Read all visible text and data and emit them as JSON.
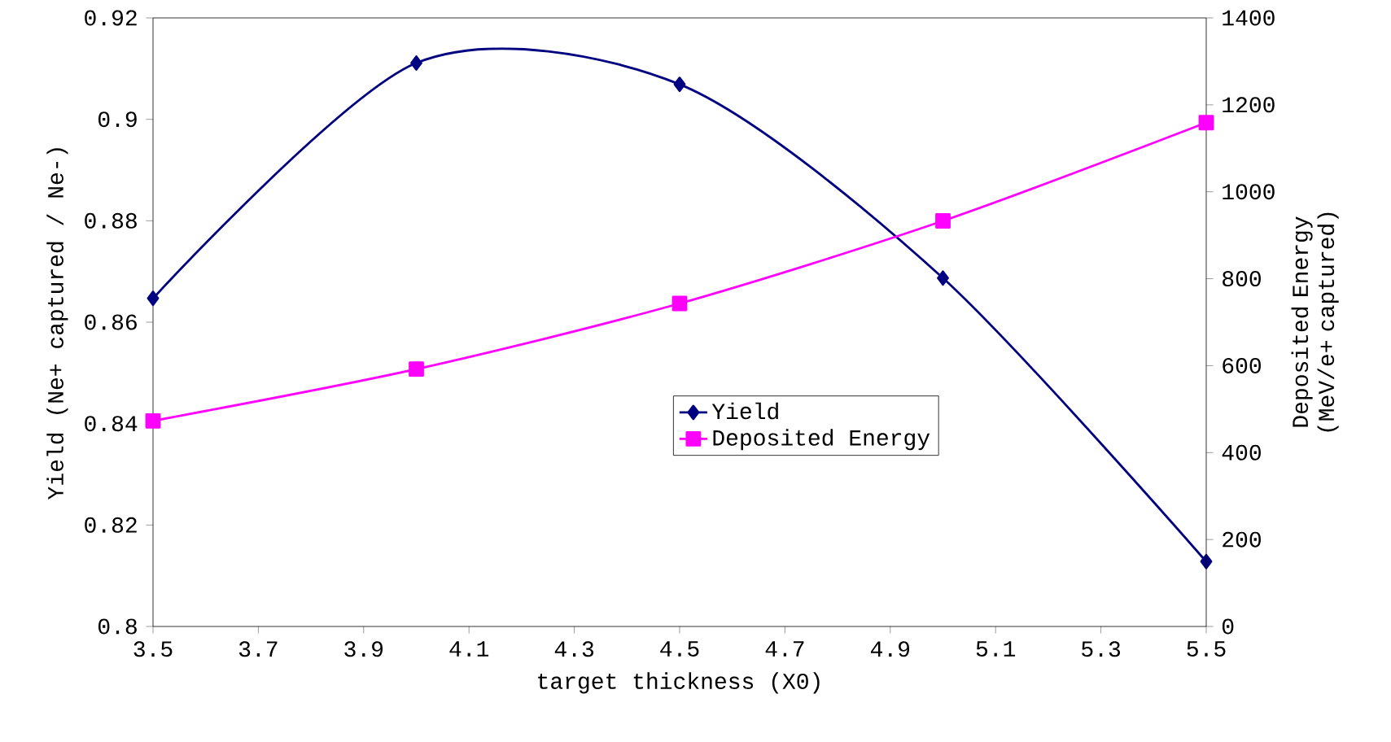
{
  "chart_data": {
    "type": "line",
    "xlabel": "target thickness (X0)",
    "ylabel": "Yield (Ne+ captured / Ne-)",
    "y2label": "Deposited Energy (MeV/e+ captured)",
    "x": [
      3.5,
      4.0,
      4.5,
      5.0,
      5.5
    ],
    "series": [
      {
        "name": "Yield",
        "color": "#000080",
        "marker": "diamond",
        "values": [
          0.8647,
          0.9111,
          0.9069,
          0.8687,
          0.8128
        ]
      },
      {
        "name": "Deposited Energy",
        "color": "#ff00ff",
        "marker": "square",
        "axis": "y2",
        "values": [
          473,
          592,
          743,
          933,
          1159
        ]
      }
    ],
    "xlim": [
      3.5,
      5.5
    ],
    "xticks": [
      3.5,
      3.7,
      3.9,
      4.1,
      4.3,
      4.5,
      4.7,
      4.9,
      5.1,
      5.3,
      5.5
    ],
    "ylim": [
      0.8,
      0.92
    ],
    "yticks": [
      0.8,
      0.82,
      0.84,
      0.86,
      0.88,
      0.9,
      0.92
    ],
    "y2lim": [
      0,
      1400
    ],
    "y2ticks": [
      0,
      200,
      400,
      600,
      800,
      1000,
      1200,
      1400
    ],
    "grid": false,
    "legend": "center",
    "line_style": "solid"
  }
}
